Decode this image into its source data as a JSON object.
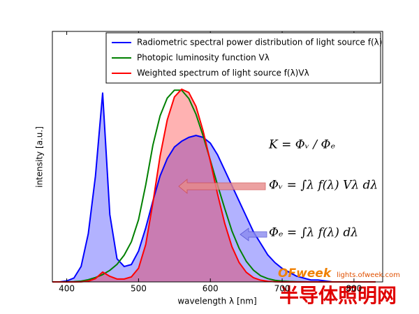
{
  "chart_data": {
    "type": "line",
    "x": [
      380,
      390,
      400,
      410,
      420,
      430,
      440,
      450,
      460,
      470,
      480,
      490,
      500,
      510,
      520,
      530,
      540,
      550,
      560,
      570,
      580,
      590,
      600,
      610,
      620,
      630,
      640,
      650,
      660,
      670,
      680,
      690,
      700,
      710,
      720,
      730,
      740,
      750,
      760,
      770,
      780,
      790,
      800,
      810,
      820,
      830
    ],
    "series": [
      {
        "name": "Radiometric spectral power distribution of light source f(λ)",
        "color": "#0000ff",
        "fill": "#0000ff",
        "values": [
          0,
          0,
          0.005,
          0.02,
          0.08,
          0.25,
          0.55,
          0.98,
          0.35,
          0.12,
          0.08,
          0.09,
          0.16,
          0.28,
          0.42,
          0.55,
          0.64,
          0.7,
          0.73,
          0.75,
          0.76,
          0.75,
          0.72,
          0.66,
          0.58,
          0.5,
          0.42,
          0.34,
          0.26,
          0.2,
          0.14,
          0.1,
          0.07,
          0.05,
          0.03,
          0.02,
          0.01,
          0.01,
          0.005,
          0,
          0,
          0,
          0,
          0,
          0,
          0
        ]
      },
      {
        "name": "Photopic luminosity function Vλ",
        "color": "#008000",
        "values": [
          0,
          0,
          0.0004,
          0.0012,
          0.004,
          0.0116,
          0.023,
          0.038,
          0.06,
          0.091,
          0.139,
          0.208,
          0.323,
          0.503,
          0.71,
          0.862,
          0.954,
          0.995,
          0.995,
          0.952,
          0.87,
          0.757,
          0.631,
          0.503,
          0.381,
          0.265,
          0.175,
          0.107,
          0.061,
          0.032,
          0.017,
          0.0082,
          0.0041,
          0.0021,
          0.001,
          0.0005,
          0.0002,
          0.0001,
          0,
          0,
          0,
          0,
          0,
          0,
          0,
          0
        ]
      },
      {
        "name": "Weighted spectrum of light source f(λ)Vλ",
        "color": "#ff0000",
        "fill": "#ff0000",
        "values": [
          0,
          0,
          0,
          0,
          0.0004,
          0.004,
          0.017,
          0.051,
          0.029,
          0.015,
          0.015,
          0.026,
          0.071,
          0.194,
          0.411,
          0.653,
          0.841,
          0.96,
          1.0,
          0.983,
          0.911,
          0.782,
          0.626,
          0.457,
          0.304,
          0.183,
          0.101,
          0.05,
          0.022,
          0.009,
          0.003,
          0.001,
          0,
          0,
          0,
          0,
          0,
          0,
          0,
          0,
          0,
          0,
          0,
          0,
          0,
          0
        ]
      }
    ],
    "xlabel": "wavelength λ [nm]",
    "ylabel": "intensity [a.u.]",
    "xlim": [
      380,
      840
    ],
    "ylim": [
      0,
      1.3
    ],
    "xticks": [
      400,
      500,
      600,
      700,
      800
    ],
    "legend": "upper right",
    "annotations": [
      "K = Φᵥ / Φₑ",
      "Φᵥ = ∫λ f(λ) Vλ dλ",
      "Φₑ = ∫λ f(λ) dλ"
    ],
    "watermark": [
      "OFweek",
      "lights.ofweek.com",
      "半导体照明网"
    ]
  }
}
